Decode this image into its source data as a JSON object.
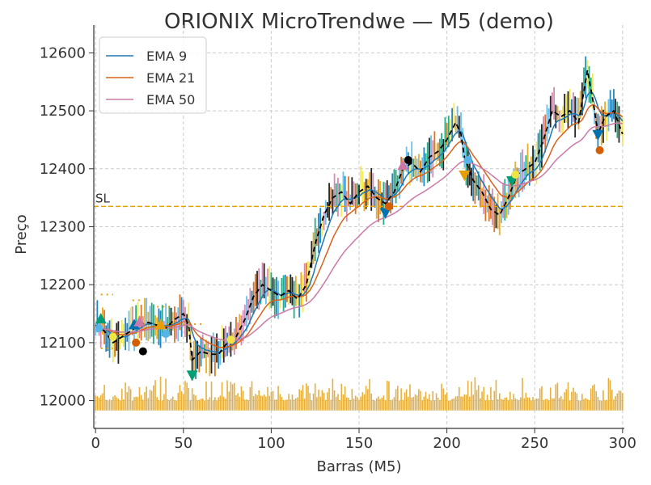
{
  "chart_data": {
    "type": "line",
    "title": "ORIONIX MicroTrendwe — M5 (demo)",
    "xlabel": "Barras (M5)",
    "ylabel": "Preço",
    "xlim": [
      -1,
      301
    ],
    "ylim": [
      11952,
      12648
    ],
    "xticks": [
      0,
      50,
      100,
      150,
      200,
      250,
      300
    ],
    "yticks": [
      12000,
      12100,
      12200,
      12300,
      12400,
      12500,
      12600
    ],
    "grid": true,
    "legend": {
      "placement": "top-left",
      "entries": [
        {
          "label": "EMA 9",
          "color": "#1f77b4",
          "period": 9
        },
        {
          "label": "EMA 21",
          "color": "#d9621a",
          "period": 21
        },
        {
          "label": "EMA 50",
          "color": "#cc79a7",
          "period": 50
        }
      ]
    },
    "close_keypoints": [
      [
        0,
        12130
      ],
      [
        5,
        12120
      ],
      [
        10,
        12100
      ],
      [
        15,
        12110
      ],
      [
        20,
        12120
      ],
      [
        25,
        12130
      ],
      [
        30,
        12135
      ],
      [
        35,
        12130
      ],
      [
        40,
        12125
      ],
      [
        45,
        12140
      ],
      [
        50,
        12150
      ],
      [
        53,
        12130
      ],
      [
        55,
        12070
      ],
      [
        60,
        12085
      ],
      [
        65,
        12080
      ],
      [
        70,
        12080
      ],
      [
        75,
        12100
      ],
      [
        80,
        12110
      ],
      [
        85,
        12140
      ],
      [
        90,
        12180
      ],
      [
        95,
        12200
      ],
      [
        100,
        12190
      ],
      [
        105,
        12180
      ],
      [
        110,
        12190
      ],
      [
        115,
        12175
      ],
      [
        120,
        12200
      ],
      [
        125,
        12270
      ],
      [
        130,
        12320
      ],
      [
        135,
        12350
      ],
      [
        140,
        12360
      ],
      [
        145,
        12340
      ],
      [
        150,
        12360
      ],
      [
        155,
        12370
      ],
      [
        160,
        12350
      ],
      [
        165,
        12340
      ],
      [
        170,
        12360
      ],
      [
        175,
        12400
      ],
      [
        180,
        12410
      ],
      [
        185,
        12395
      ],
      [
        190,
        12420
      ],
      [
        195,
        12430
      ],
      [
        200,
        12450
      ],
      [
        205,
        12480
      ],
      [
        208,
        12460
      ],
      [
        210,
        12420
      ],
      [
        215,
        12380
      ],
      [
        220,
        12360
      ],
      [
        225,
        12330
      ],
      [
        230,
        12320
      ],
      [
        235,
        12350
      ],
      [
        240,
        12390
      ],
      [
        245,
        12400
      ],
      [
        250,
        12410
      ],
      [
        255,
        12450
      ],
      [
        260,
        12500
      ],
      [
        265,
        12490
      ],
      [
        270,
        12500
      ],
      [
        275,
        12480
      ],
      [
        280,
        12570
      ],
      [
        283,
        12520
      ],
      [
        286,
        12460
      ],
      [
        290,
        12490
      ],
      [
        295,
        12500
      ],
      [
        300,
        12460
      ]
    ],
    "stop_loss": {
      "label": "SL",
      "value": 12335,
      "color": "#e6a000"
    },
    "volume_base": 11983,
    "volume_range": [
      12000,
      12035
    ],
    "markers": [
      {
        "x": 3,
        "y": 12140,
        "shape": "triangle-up",
        "color": "#009e73"
      },
      {
        "x": 2,
        "y": 12125,
        "shape": "circle",
        "color": "#56b4e9"
      },
      {
        "x": 22,
        "y": 12130,
        "shape": "triangle-up",
        "color": "#0072b2"
      },
      {
        "x": 25,
        "y": 12135,
        "shape": "triangle-up",
        "color": "#cc79a7"
      },
      {
        "x": 23,
        "y": 12100,
        "shape": "circle",
        "color": "#d55e00"
      },
      {
        "x": 27,
        "y": 12085,
        "shape": "circle",
        "color": "#000000"
      },
      {
        "x": 10,
        "y": 12110,
        "shape": "circle",
        "color": "#f0e442"
      },
      {
        "x": 37,
        "y": 12130,
        "shape": "triangle-up",
        "color": "#e69f00"
      },
      {
        "x": 40,
        "y": 12115,
        "shape": "circle",
        "color": "#56b4e9"
      },
      {
        "x": 55,
        "y": 12045,
        "shape": "triangle-down",
        "color": "#009e73"
      },
      {
        "x": 77,
        "y": 12105,
        "shape": "circle",
        "color": "#f0e442"
      },
      {
        "x": 165,
        "y": 12325,
        "shape": "triangle-down",
        "color": "#0072b2"
      },
      {
        "x": 167,
        "y": 12335,
        "shape": "circle",
        "color": "#d55e00"
      },
      {
        "x": 175,
        "y": 12405,
        "shape": "triangle-up",
        "color": "#cc79a7"
      },
      {
        "x": 178,
        "y": 12415,
        "shape": "circle",
        "color": "#000000"
      },
      {
        "x": 210,
        "y": 12390,
        "shape": "triangle-down",
        "color": "#e69f00"
      },
      {
        "x": 212,
        "y": 12415,
        "shape": "circle",
        "color": "#56b4e9"
      },
      {
        "x": 237,
        "y": 12380,
        "shape": "triangle-down",
        "color": "#009e73"
      },
      {
        "x": 239,
        "y": 12390,
        "shape": "circle",
        "color": "#f0e442"
      },
      {
        "x": 286,
        "y": 12460,
        "shape": "triangle-down",
        "color": "#0072b2"
      },
      {
        "x": 287,
        "y": 12432,
        "shape": "circle",
        "color": "#d55e00"
      }
    ],
    "dotted_levels": [
      {
        "x0": 3,
        "x1": 10,
        "y": 12183
      },
      {
        "x0": 21,
        "x1": 26,
        "y": 12173
      },
      {
        "x0": 35,
        "x1": 42,
        "y": 12162
      },
      {
        "x0": 40,
        "x1": 62,
        "y": 12132
      },
      {
        "x0": 3,
        "x1": 10,
        "y": 12090
      }
    ],
    "candle_colors": [
      "#0072b2",
      "#009e73",
      "#d55e00",
      "#cc79a7",
      "#f0e442",
      "#56b4e9",
      "#e69f00",
      "#000000"
    ]
  }
}
